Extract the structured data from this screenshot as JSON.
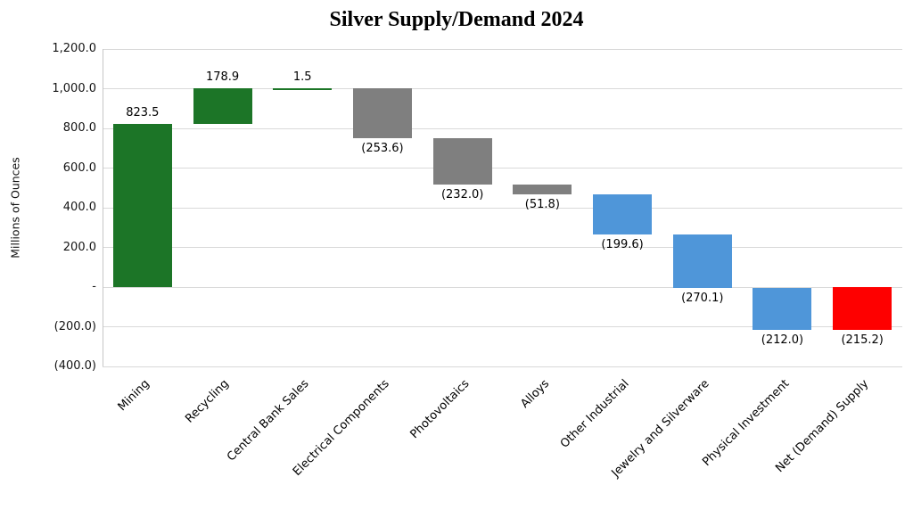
{
  "chart_data": {
    "type": "bar",
    "subtype": "waterfall",
    "title": "Silver Supply/Demand 2024",
    "ylabel": "Millions of Ounces",
    "xlabel": "",
    "ylim": [
      -400,
      1200
    ],
    "grid": true,
    "legend": "none",
    "yticks": [
      {
        "value": 1200,
        "label": "1,200.0"
      },
      {
        "value": 1000,
        "label": "1,000.0"
      },
      {
        "value": 800,
        "label": "800.0"
      },
      {
        "value": 600,
        "label": "600.0"
      },
      {
        "value": 400,
        "label": "400.0"
      },
      {
        "value": 200,
        "label": "200.0"
      },
      {
        "value": 0,
        "label": "-"
      },
      {
        "value": -200,
        "label": "(200.0)"
      },
      {
        "value": -400,
        "label": "(400.0)"
      }
    ],
    "colors": {
      "supply_green": "#1c7527",
      "industrial_gray": "#7f7f7f",
      "demand_blue": "#4f96d9",
      "net_red": "#fe0000"
    },
    "bars": [
      {
        "category": "Mining",
        "value": 823.5,
        "label": "823.5",
        "color": "#1c7527",
        "label_position": "above",
        "is_total": false
      },
      {
        "category": "Recycling",
        "value": 178.9,
        "label": "178.9",
        "color": "#1c7527",
        "label_position": "above",
        "is_total": false
      },
      {
        "category": "Central Bank Sales",
        "value": 1.5,
        "label": "1.5",
        "color": "#1c7527",
        "label_position": "above",
        "is_total": false
      },
      {
        "category": "Electrical Components",
        "value": -253.6,
        "label": "(253.6)",
        "color": "#7f7f7f",
        "label_position": "below",
        "is_total": false
      },
      {
        "category": "Photovoltaics",
        "value": -232.0,
        "label": "(232.0)",
        "color": "#7f7f7f",
        "label_position": "below",
        "is_total": false
      },
      {
        "category": "Alloys",
        "value": -51.8,
        "label": "(51.8)",
        "color": "#7f7f7f",
        "label_position": "below",
        "is_total": false
      },
      {
        "category": "Other Industrial",
        "value": -199.6,
        "label": "(199.6)",
        "color": "#4f96d9",
        "label_position": "below",
        "is_total": false
      },
      {
        "category": "Jewelry and Silverware",
        "value": -270.1,
        "label": "(270.1)",
        "color": "#4f96d9",
        "label_position": "below",
        "is_total": false
      },
      {
        "category": "Physical Investment",
        "value": -212.0,
        "label": "(212.0)",
        "color": "#4f96d9",
        "label_position": "below",
        "is_total": false
      },
      {
        "category": "Net (Demand) Supply",
        "value": -215.2,
        "label": "(215.2)",
        "color": "#fe0000",
        "label_position": "below",
        "is_total": true
      }
    ]
  }
}
